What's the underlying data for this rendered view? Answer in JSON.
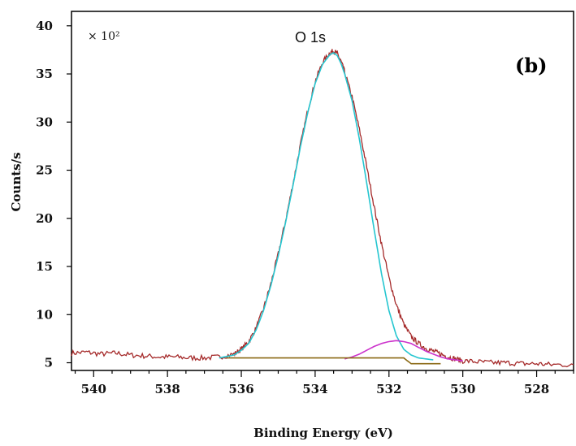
{
  "chart_data": {
    "type": "line",
    "title": "",
    "panel_label": "(b)",
    "annotation": "O 1s",
    "multiplier": "× 10²",
    "xlabel": "Binding Energy (eV)",
    "ylabel": "Counts/s",
    "xlim": [
      540.6,
      527.0
    ],
    "ylim": [
      4.2,
      41.5
    ],
    "x_reversed": true,
    "grid": false,
    "legend": "none",
    "xticks": [
      540,
      538,
      536,
      534,
      532,
      530,
      528
    ],
    "yticks": [
      5,
      10,
      15,
      20,
      25,
      30,
      35,
      40
    ],
    "series": [
      {
        "color": "#a52a2a",
        "x": [
          540.6,
          540.2,
          539.8,
          539.4,
          539.0,
          538.6,
          538.2,
          537.8,
          537.4,
          537.0,
          536.6,
          536.2,
          536.0,
          535.8,
          535.6,
          535.4,
          535.2,
          535.0,
          534.8,
          534.6,
          534.4,
          534.2,
          534.0,
          533.8,
          533.6,
          533.5,
          533.4,
          533.3,
          533.2,
          533.0,
          532.8,
          532.6,
          532.4,
          532.2,
          532.0,
          531.8,
          531.6,
          531.4,
          531.2,
          531.0,
          530.8,
          530.6,
          530.4,
          530.2,
          530.0,
          529.6,
          529.2,
          528.8,
          528.4,
          528.0,
          527.6,
          527.0
        ],
        "y": [
          6.0,
          6.1,
          5.9,
          6.0,
          5.8,
          5.7,
          5.6,
          5.6,
          5.5,
          5.5,
          5.6,
          5.9,
          6.4,
          7.2,
          8.6,
          10.6,
          13.2,
          16.3,
          19.8,
          23.6,
          27.6,
          31.2,
          34.2,
          36.2,
          37.2,
          37.4,
          37.1,
          36.3,
          35.2,
          32.6,
          29.2,
          25.3,
          21.2,
          17.3,
          13.8,
          11.0,
          9.0,
          7.7,
          7.0,
          6.5,
          6.2,
          5.9,
          5.6,
          5.4,
          5.2,
          5.1,
          5.0,
          5.0,
          4.9,
          4.9,
          4.8,
          4.8
        ]
      },
      {
        "color": "#26c6d0",
        "x": [
          536.6,
          536.2,
          536.0,
          535.8,
          535.6,
          535.4,
          535.2,
          535.0,
          534.8,
          534.6,
          534.4,
          534.2,
          534.0,
          533.8,
          533.6,
          533.5,
          533.4,
          533.3,
          533.2,
          533.0,
          532.8,
          532.6,
          532.4,
          532.2,
          532.0,
          531.8,
          531.6,
          531.4,
          531.2,
          531.0,
          530.8
        ],
        "y": [
          5.5,
          5.8,
          6.3,
          7.0,
          8.4,
          10.4,
          13.0,
          16.1,
          19.6,
          23.4,
          27.4,
          31.0,
          34.0,
          36.0,
          37.0,
          37.2,
          36.9,
          36.1,
          35.0,
          32.2,
          28.2,
          23.6,
          18.8,
          14.2,
          10.4,
          7.8,
          6.4,
          5.8,
          5.5,
          5.4,
          5.3
        ]
      },
      {
        "color": "#cc33cc",
        "x": [
          533.2,
          533.0,
          532.8,
          532.6,
          532.4,
          532.2,
          532.0,
          531.8,
          531.6,
          531.4,
          531.2,
          531.0,
          530.8,
          530.6,
          530.4,
          530.2,
          530.0
        ],
        "y": [
          5.4,
          5.6,
          5.9,
          6.3,
          6.7,
          7.0,
          7.2,
          7.3,
          7.2,
          7.0,
          6.6,
          6.2,
          5.9,
          5.6,
          5.4,
          5.3,
          5.2
        ]
      },
      {
        "color": "#8b6914",
        "x": [
          536.4,
          531.6,
          531.4,
          530.6
        ],
        "y": [
          5.5,
          5.5,
          4.9,
          4.9
        ]
      }
    ]
  }
}
